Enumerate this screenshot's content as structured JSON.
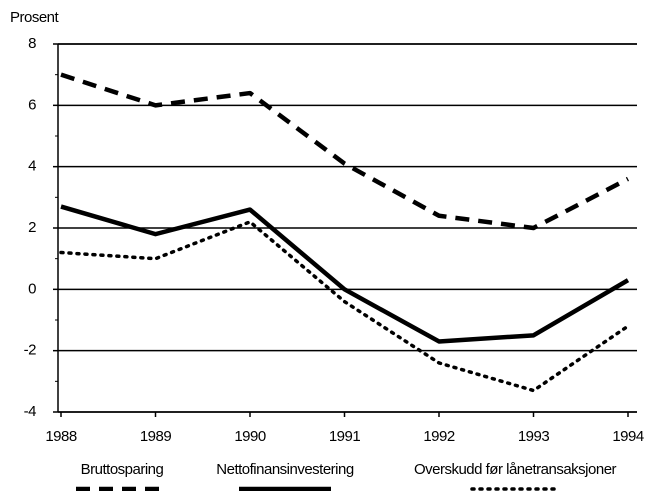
{
  "chart_data": {
    "type": "line",
    "y_label": "Prosent",
    "categories": [
      "1988",
      "1989",
      "1990",
      "1991",
      "1992",
      "1993",
      "1994"
    ],
    "series": [
      {
        "name": "Bruttosparing",
        "color": "#000000",
        "style": "dashed",
        "values": [
          7.0,
          6.0,
          6.4,
          4.1,
          2.4,
          2.0,
          3.6
        ]
      },
      {
        "name": "Nettofinansinvestering",
        "color": "#000000",
        "style": "solid",
        "values": [
          2.7,
          1.8,
          2.6,
          0.0,
          -1.7,
          -1.5,
          0.3
        ]
      },
      {
        "name": "Overskudd før lånetransaksjoner",
        "color": "#000000",
        "style": "dotted",
        "values": [
          1.2,
          1.0,
          2.2,
          -0.4,
          -2.4,
          -3.3,
          -1.2
        ]
      }
    ],
    "ylim": [
      -4,
      8
    ],
    "yticks": [
      -4,
      -2,
      0,
      2,
      4,
      6,
      8
    ],
    "grid": true,
    "legend": "bottom"
  }
}
